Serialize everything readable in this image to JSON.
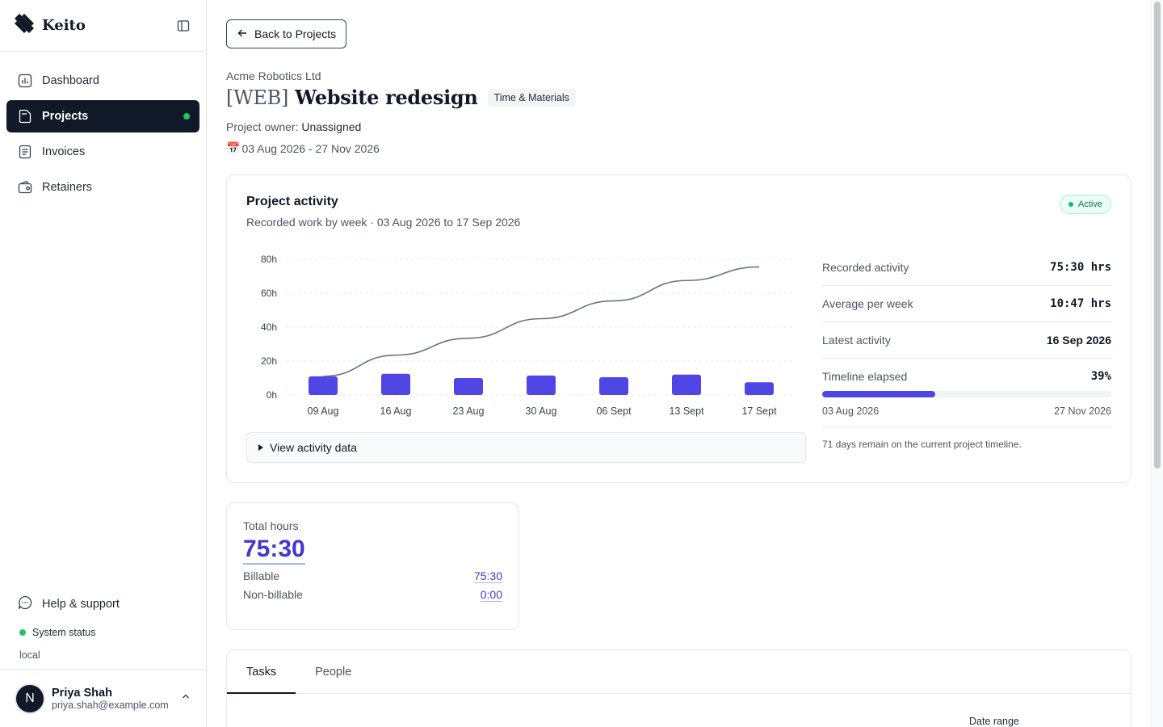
{
  "app": {
    "name": "Keito"
  },
  "sidebar": {
    "items": [
      {
        "label": "Dashboard",
        "icon": "bar-chart-icon",
        "active": false
      },
      {
        "label": "Projects",
        "icon": "folder-icon",
        "active": true
      },
      {
        "label": "Invoices",
        "icon": "document-icon",
        "active": false
      },
      {
        "label": "Retainers",
        "icon": "wallet-icon",
        "active": false
      }
    ],
    "help_label": "Help & support",
    "status_label": "System status",
    "env_label": "local",
    "user": {
      "initial": "N",
      "name": "Priya Shah",
      "email": "priya.shah@example.com"
    }
  },
  "header": {
    "back_label": "Back to Projects",
    "client": "Acme Robotics Ltd",
    "project_code": "[WEB]",
    "project_name": "Website redesign",
    "billing_type": "Time & Materials",
    "owner_label": "Project owner:",
    "owner_value": "Unassigned",
    "date_icon": "📅",
    "date_range": "03 Aug 2026 - 27 Nov 2026"
  },
  "activity": {
    "title": "Project activity",
    "subtitle": "Recorded work by week · 03 Aug 2026 to 17 Sep 2026",
    "status_badge": "Active",
    "view_data_label": "View activity data",
    "stats": [
      {
        "label": "Recorded activity",
        "value": "75:30 hrs",
        "mono": true
      },
      {
        "label": "Average per week",
        "value": "10:47 hrs",
        "mono": true
      },
      {
        "label": "Latest activity",
        "value": "16 Sep 2026",
        "mono": false
      }
    ],
    "timeline": {
      "label": "Timeline elapsed",
      "value": "39%",
      "percent": 39,
      "start": "03 Aug 2026",
      "end": "27 Nov 2026",
      "remaining_note": "71 days remain on the current project timeline."
    }
  },
  "chart_data": {
    "type": "bar",
    "categories": [
      "09 Aug",
      "16 Aug",
      "23 Aug",
      "30 Aug",
      "06 Sept",
      "13 Sept",
      "17 Sept"
    ],
    "series": [
      {
        "type": "bar",
        "values": [
          11,
          12.5,
          10,
          11.5,
          10.5,
          12,
          7.5
        ]
      },
      {
        "type": "line",
        "values": [
          11,
          23.5,
          33.5,
          45,
          55.5,
          67.5,
          75.5
        ]
      }
    ],
    "y_ticks": [
      "0h",
      "20h",
      "40h",
      "60h",
      "80h"
    ],
    "ylim": [
      0,
      80
    ],
    "grid": true,
    "colors": {
      "bar": "#4f46e5",
      "line": "#6b7280"
    }
  },
  "hours": {
    "label": "Total hours",
    "total": "75:30",
    "billable_label": "Billable",
    "billable_value": "75:30",
    "nonbillable_label": "Non-billable",
    "nonbillable_value": "0:00"
  },
  "tabs": [
    {
      "label": "Tasks",
      "active": true
    },
    {
      "label": "People",
      "active": false
    }
  ],
  "table": {
    "date_range_label": "Date range"
  }
}
